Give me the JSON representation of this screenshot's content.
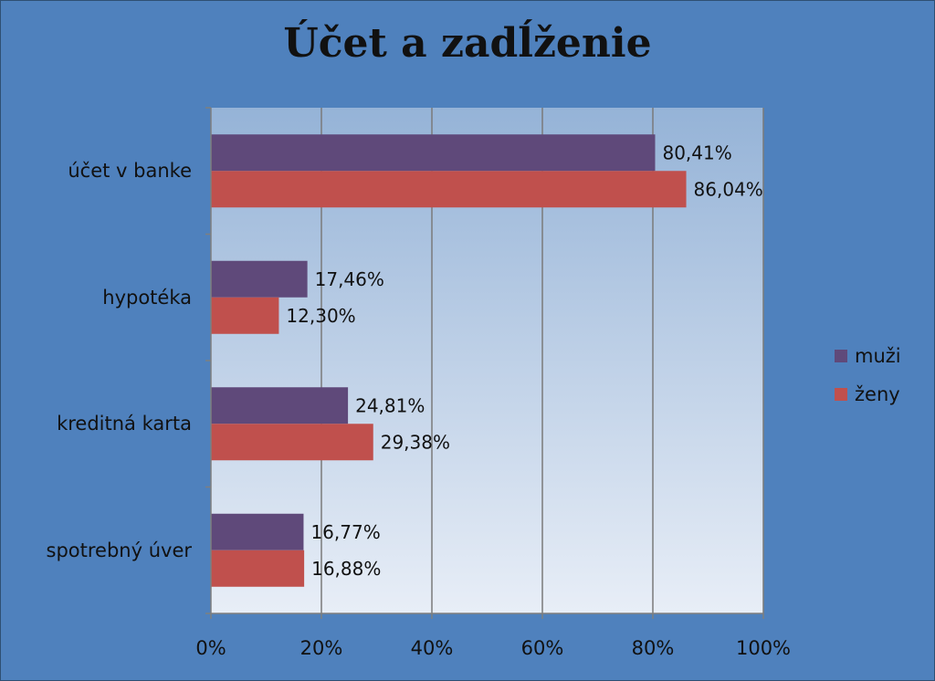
{
  "chart_data": {
    "type": "bar",
    "orientation": "horizontal",
    "title": "Účet a zadĺženie",
    "categories": [
      "účet v banke",
      "hypotéka",
      "kreditná karta",
      "spotrebný úver"
    ],
    "series": [
      {
        "name": "muži",
        "color": "#5f497a",
        "values": [
          80.41,
          17.46,
          24.81,
          16.77
        ],
        "labels": [
          "80,41%",
          "17,46%",
          "24,81%",
          "16,77%"
        ]
      },
      {
        "name": "ženy",
        "color": "#c0504d",
        "values": [
          86.04,
          12.3,
          29.38,
          16.88
        ],
        "labels": [
          "86,04%",
          "12,30%",
          "29,38%",
          "16,88%"
        ]
      }
    ],
    "xlim": [
      0,
      100
    ],
    "xticks": [
      "0%",
      "20%",
      "40%",
      "60%",
      "80%",
      "100%"
    ],
    "grid": true,
    "legend_position": "right"
  }
}
